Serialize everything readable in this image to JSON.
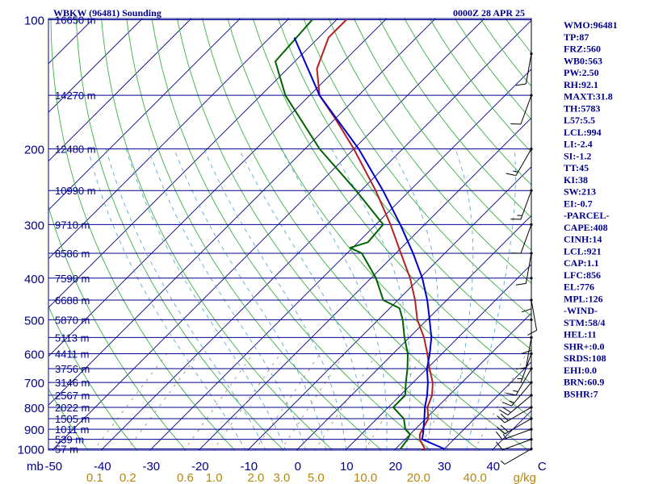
{
  "chart_data": {
    "type": "skew-t log-p sounding",
    "header": {
      "left": "WBKW (96481) Sounding",
      "right": "0000Z 28 APR 25"
    },
    "pressure_axis": {
      "unit_label": "mb",
      "ticks": [
        100,
        200,
        300,
        400,
        500,
        600,
        700,
        800,
        900,
        1000
      ]
    },
    "temperature_axis": {
      "ticks": [
        -50,
        -40,
        -30,
        -20,
        -10,
        0,
        10,
        20,
        30,
        40,
        "C"
      ]
    },
    "mixing_ratio_axis": {
      "unit_label": "g/kg",
      "ticks": [
        "0.1",
        "0.2",
        "0.6",
        "1.0",
        "2.0",
        "3.0",
        "5.0",
        "10.0",
        "20.0",
        "40.0"
      ]
    },
    "mixing_ratio_values": [
      0.1,
      0.2,
      0.6,
      1.0,
      2.0,
      3.0,
      5.0,
      10.0,
      20.0,
      40.0
    ],
    "heights": [
      {
        "p": 100,
        "label": "16650 m"
      },
      {
        "p": 150,
        "label": "14270 m"
      },
      {
        "p": 200,
        "label": "12480 m"
      },
      {
        "p": 250,
        "label": "10990 m"
      },
      {
        "p": 300,
        "label": "9710 m"
      },
      {
        "p": 350,
        "label": "8586 m"
      },
      {
        "p": 400,
        "label": "7590 m"
      },
      {
        "p": 450,
        "label": "6688 m"
      },
      {
        "p": 500,
        "label": "5870 m"
      },
      {
        "p": 550,
        "label": "5113 m"
      },
      {
        "p": 600,
        "label": "4411 m"
      },
      {
        "p": 650,
        "label": "3756 m"
      },
      {
        "p": 700,
        "label": "3146 m"
      },
      {
        "p": 750,
        "label": "2567 m"
      },
      {
        "p": 800,
        "label": "2022 m"
      },
      {
        "p": 850,
        "label": "1505 m"
      },
      {
        "p": 900,
        "label": "1011 m"
      },
      {
        "p": 950,
        "label": "539 m"
      },
      {
        "p": 1000,
        "label": "57 m"
      }
    ],
    "series": [
      {
        "name": "Temperature",
        "color": "#b22222",
        "points": [
          {
            "p": 1004,
            "t": 25.5
          },
          {
            "p": 1000,
            "t": 26.0
          },
          {
            "p": 950,
            "t": 23.0
          },
          {
            "p": 925,
            "t": 22.0
          },
          {
            "p": 900,
            "t": 21.5
          },
          {
            "p": 850,
            "t": 20.5
          },
          {
            "p": 800,
            "t": 18.0
          },
          {
            "p": 750,
            "t": 16.5
          },
          {
            "p": 700,
            "t": 14.0
          },
          {
            "p": 650,
            "t": 10.5
          },
          {
            "p": 600,
            "t": 7.0
          },
          {
            "p": 550,
            "t": 3.0
          },
          {
            "p": 500,
            "t": -2.0
          },
          {
            "p": 450,
            "t": -6.5
          },
          {
            "p": 400,
            "t": -12.0
          },
          {
            "p": 350,
            "t": -19.0
          },
          {
            "p": 300,
            "t": -27.0
          },
          {
            "p": 250,
            "t": -37.0
          },
          {
            "p": 200,
            "t": -50.0
          },
          {
            "p": 170,
            "t": -60.0
          },
          {
            "p": 150,
            "t": -68.0
          },
          {
            "p": 130,
            "t": -74.0
          },
          {
            "p": 110,
            "t": -78.0
          },
          {
            "p": 100,
            "t": -78.0
          }
        ]
      },
      {
        "name": "Dewpoint",
        "color": "#006400",
        "points": [
          {
            "p": 1000,
            "t": 21.0
          },
          {
            "p": 950,
            "t": 20.5
          },
          {
            "p": 925,
            "t": 20.0
          },
          {
            "p": 900,
            "t": 18.0
          },
          {
            "p": 850,
            "t": 15.5
          },
          {
            "p": 800,
            "t": 11.0
          },
          {
            "p": 750,
            "t": 11.0
          },
          {
            "p": 700,
            "t": 8.5
          },
          {
            "p": 650,
            "t": 6.0
          },
          {
            "p": 600,
            "t": 3.0
          },
          {
            "p": 550,
            "t": -1.0
          },
          {
            "p": 500,
            "t": -5.0
          },
          {
            "p": 470,
            "t": -8.0
          },
          {
            "p": 450,
            "t": -13.0
          },
          {
            "p": 400,
            "t": -19.0
          },
          {
            "p": 350,
            "t": -27.0
          },
          {
            "p": 340,
            "t": -30.5
          },
          {
            "p": 330,
            "t": -28.0
          },
          {
            "p": 300,
            "t": -28.5
          },
          {
            "p": 250,
            "t": -41.0
          },
          {
            "p": 200,
            "t": -57.0
          },
          {
            "p": 150,
            "t": -75.0
          },
          {
            "p": 125,
            "t": -84.0
          },
          {
            "p": 100,
            "t": -85.0
          }
        ]
      },
      {
        "name": "Parcel",
        "color": "#0000cd",
        "points": [
          {
            "p": 1000,
            "t": 30.0
          },
          {
            "p": 950,
            "t": 23.5
          },
          {
            "p": 921,
            "t": 22.5
          },
          {
            "p": 850,
            "t": 19.7
          },
          {
            "p": 800,
            "t": 17.5
          },
          {
            "p": 750,
            "t": 15.5
          },
          {
            "p": 700,
            "t": 13.0
          },
          {
            "p": 650,
            "t": 10.0
          },
          {
            "p": 600,
            "t": 7.5
          },
          {
            "p": 550,
            "t": 4.5
          },
          {
            "p": 500,
            "t": 0.5
          },
          {
            "p": 450,
            "t": -4.0
          },
          {
            "p": 400,
            "t": -9.5
          },
          {
            "p": 350,
            "t": -16.5
          },
          {
            "p": 300,
            "t": -25.0
          },
          {
            "p": 250,
            "t": -35.5
          },
          {
            "p": 200,
            "t": -49.0
          },
          {
            "p": 150,
            "t": -68.0
          },
          {
            "p": 110,
            "t": -85.0
          }
        ]
      }
    ],
    "wind_barbs": [
      {
        "p": 1000,
        "dir": 240,
        "spd": 5
      },
      {
        "p": 950,
        "dir": 250,
        "spd": 10
      },
      {
        "p": 900,
        "dir": 250,
        "spd": 15
      },
      {
        "p": 850,
        "dir": 240,
        "spd": 20
      },
      {
        "p": 800,
        "dir": 240,
        "spd": 20
      },
      {
        "p": 750,
        "dir": 230,
        "spd": 20
      },
      {
        "p": 700,
        "dir": 220,
        "spd": 15
      },
      {
        "p": 650,
        "dir": 210,
        "spd": 15
      },
      {
        "p": 600,
        "dir": 200,
        "spd": 15
      },
      {
        "p": 550,
        "dir": 190,
        "spd": 10
      },
      {
        "p": 500,
        "dir": 180,
        "spd": 10
      },
      {
        "p": 450,
        "dir": 170,
        "spd": 10
      },
      {
        "p": 400,
        "dir": 180,
        "spd": 10
      },
      {
        "p": 350,
        "dir": 190,
        "spd": 10
      },
      {
        "p": 300,
        "dir": 200,
        "spd": 10
      },
      {
        "p": 250,
        "dir": 200,
        "spd": 15
      },
      {
        "p": 200,
        "dir": 210,
        "spd": 15
      },
      {
        "p": 150,
        "dir": 200,
        "spd": 10
      },
      {
        "p": 120,
        "dir": 190,
        "spd": 10
      }
    ],
    "indices": [
      "WMO:96481",
      "TP:87",
      "FRZ:560",
      "WB0:563",
      "PW:2.50",
      "RH:92.1",
      "MAXT:31.8",
      "TH:5783",
      "L57:5.5",
      "LCL:994",
      "LI:-2.4",
      "SI:-1.2",
      "TT:45",
      "KI:38",
      "SW:213",
      "EI:-0.7",
      "-PARCEL-",
      "CAPE:408",
      "CINH:14",
      "LCL:921",
      "CAP:1.1",
      "LFC:856",
      "EL:776",
      "MPL:126",
      "-WIND-",
      "STM:58/4",
      "HEL:11",
      "SHR+:0.0",
      "SRDS:108",
      "EHI:0.0",
      "BRN:60.9",
      "BSHR:7"
    ],
    "colors": {
      "isobar": "#00008b",
      "isotherm": "#00008b",
      "dry_adiabat": "#3cb043",
      "moist_adiabat": "#5fa8d3",
      "mixing_ratio": "#a08060",
      "temperature": "#b22222",
      "dewpoint": "#006400",
      "parcel": "#0000cd",
      "labels": "#00008b",
      "mixing_ratio_labels": "#b8860b"
    }
  }
}
